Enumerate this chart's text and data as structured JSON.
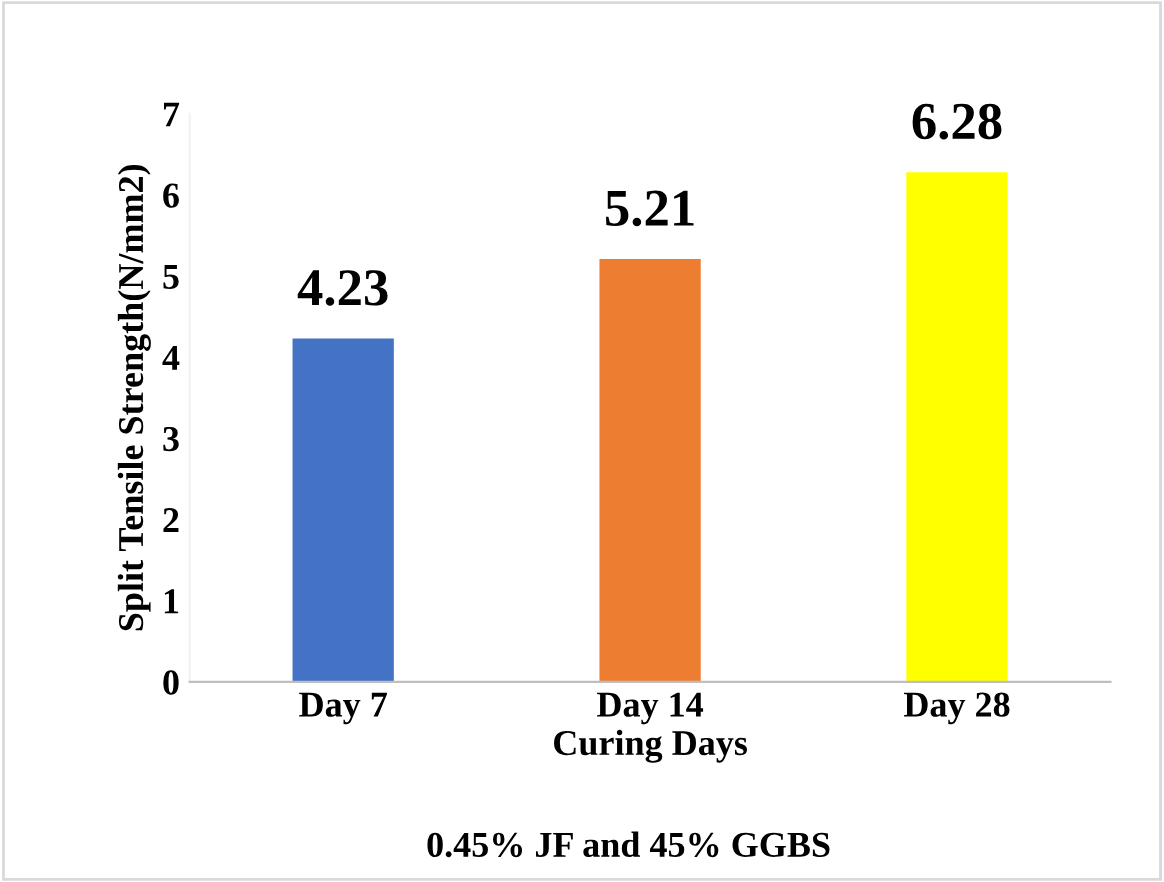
{
  "chart_data": {
    "type": "bar",
    "xlabel": "Curing Days",
    "ylabel": "Split Tensile Strength(N/mm2)",
    "categories": [
      "Day 7",
      "Day 14",
      "Day 28"
    ],
    "values": [
      4.23,
      5.21,
      6.28
    ],
    "colors": [
      "#4472c4",
      "#ed7d31",
      "#ffff00"
    ],
    "ylim": [
      0,
      7
    ],
    "yticks": [
      0,
      1,
      2,
      3,
      4,
      5,
      6,
      7
    ],
    "grid": false,
    "data_labels": true,
    "annotations": [
      "0.45% JF and 45% GGBS"
    ]
  }
}
